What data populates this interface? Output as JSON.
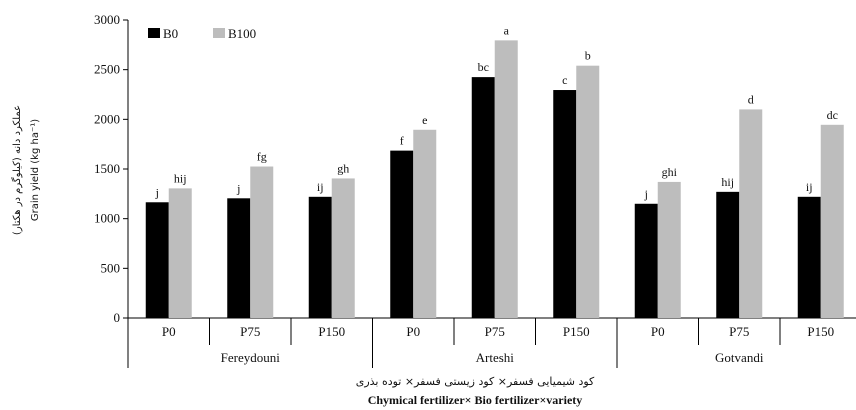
{
  "chart_data": {
    "type": "bar",
    "ylim": [
      0,
      3000
    ],
    "yticks": [
      "0",
      "500",
      "1000",
      "1500",
      "2000",
      "2500",
      "3000"
    ],
    "ylabel_fa": "عملکرد دانه (کیلوگرم در هکتار)",
    "ylabel_en": "Grain yield (kg ha⁻¹)",
    "xlabel_fa": "کود شیمیایی فسفر× کود زیستی فسفر× توده بذری",
    "xlabel_en": "Chymical fertilizer× Bio fertilizer×variety",
    "legend": {
      "position": "top-left",
      "entries": [
        "B0",
        "B100"
      ]
    },
    "colors": {
      "B0": "#000000",
      "B100": "#bdbdbd"
    },
    "groups": [
      "Fereydouni",
      "Arteshi",
      "Gotvandi"
    ],
    "categories": [
      "P0",
      "P75",
      "P150",
      "P0",
      "P75",
      "P150",
      "P0",
      "P75",
      "P150"
    ],
    "series": [
      {
        "name": "B0",
        "values": [
          1165,
          1205,
          1220,
          1685,
          2425,
          2295,
          1150,
          1270,
          1220
        ],
        "labels": [
          "j",
          "j",
          "ij",
          "f",
          "bc",
          "c",
          "j",
          "hij",
          "ij"
        ]
      },
      {
        "name": "B100",
        "values": [
          1305,
          1525,
          1405,
          1895,
          2795,
          2540,
          1370,
          2100,
          1945
        ],
        "labels": [
          "hij",
          "fg",
          "gh",
          "e",
          "a",
          "b",
          "ghi",
          "d",
          "dc"
        ]
      }
    ]
  }
}
